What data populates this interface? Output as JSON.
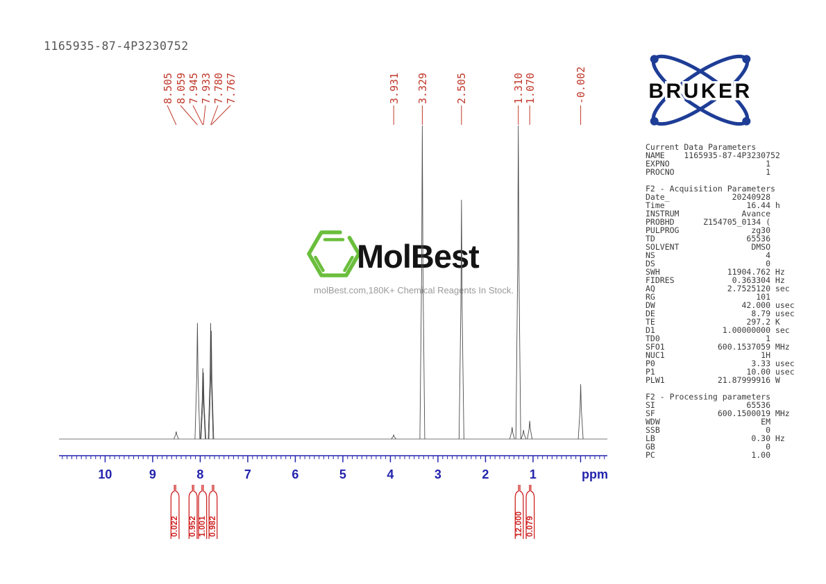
{
  "title": "1165935-87-4P3230752",
  "colors": {
    "peak_label_red": "#c0392b",
    "integral_red": "#cf2222",
    "axis_blue": "#2323ad",
    "trace_gray": "#4a4a4a",
    "bruker_blue": "#1e3d96",
    "molbest_green": "#6abe3c"
  },
  "bruker_logo": {
    "brand": "BRUKER"
  },
  "watermark": {
    "brand": "MolBest",
    "tagline": "molBest.com,180K+ Chemical Reagents In Stock."
  },
  "params": {
    "sections": [
      {
        "header": "Current Data Parameters",
        "rows": [
          [
            "NAME",
            "1165935-87-4P3230752",
            ""
          ],
          [
            "EXPNO",
            "1",
            ""
          ],
          [
            "PROCNO",
            "1",
            ""
          ]
        ]
      },
      {
        "header": "F2 - Acquisition Parameters",
        "rows": [
          [
            "Date_",
            "20240928",
            ""
          ],
          [
            "Time",
            "16.44",
            "h"
          ],
          [
            "INSTRUM",
            "Avance",
            ""
          ],
          [
            "PROBHD",
            "Z154705_0134 (",
            ""
          ],
          [
            "PULPROG",
            "zg30",
            ""
          ],
          [
            "TD",
            "65536",
            ""
          ],
          [
            "SOLVENT",
            "DMSO",
            ""
          ],
          [
            "NS",
            "4",
            ""
          ],
          [
            "DS",
            "0",
            ""
          ],
          [
            "SWH",
            "11904.762",
            "Hz"
          ],
          [
            "FIDRES",
            "0.363304",
            "Hz"
          ],
          [
            "AQ",
            "2.7525120",
            "sec"
          ],
          [
            "RG",
            "101",
            ""
          ],
          [
            "DW",
            "42.000",
            "usec"
          ],
          [
            "DE",
            "8.79",
            "usec"
          ],
          [
            "TE",
            "297.2",
            "K"
          ],
          [
            "D1",
            "1.00000000",
            "sec"
          ],
          [
            "TD0",
            "1",
            ""
          ],
          [
            "SFO1",
            "600.1537059",
            "MHz"
          ],
          [
            "NUC1",
            "1H",
            ""
          ],
          [
            "P0",
            "3.33",
            "usec"
          ],
          [
            "P1",
            "10.00",
            "usec"
          ],
          [
            "PLW1",
            "21.87999916",
            "W"
          ]
        ]
      },
      {
        "header": "F2 - Processing parameters",
        "rows": [
          [
            "SI",
            "65536",
            ""
          ],
          [
            "SF",
            "600.1500019",
            "MHz"
          ],
          [
            "WDW",
            "EM",
            ""
          ],
          [
            "SSB",
            "0",
            ""
          ],
          [
            "LB",
            "0.30",
            "Hz"
          ],
          [
            "GB",
            "0",
            ""
          ],
          [
            "PC",
            "1.00",
            ""
          ]
        ]
      }
    ]
  },
  "chart_data": {
    "type": "line",
    "title": "1H NMR spectrum",
    "xlabel": "ppm",
    "x_axis": {
      "min": -0.6,
      "max": 11.0,
      "direction": "reversed",
      "major_ticks": [
        10,
        9,
        8,
        7,
        6,
        5,
        4,
        3,
        2,
        1,
        0
      ],
      "numbered_ticks": [
        "10",
        "9",
        "8",
        "7",
        "6",
        "5",
        "4",
        "3",
        "2",
        "1"
      ],
      "minor_tick_step": 0.1,
      "unit_label": "ppm"
    },
    "peaks": [
      {
        "ppm": 8.505,
        "rel_intensity": 0.024,
        "label": "8.505"
      },
      {
        "ppm": 8.059,
        "rel_intensity": 0.37,
        "label": "8.059"
      },
      {
        "ppm": 7.945,
        "rel_intensity": 0.226,
        "label": "7.945"
      },
      {
        "ppm": 7.933,
        "rel_intensity": 0.212,
        "label": "7.933"
      },
      {
        "ppm": 7.78,
        "rel_intensity": 0.37,
        "label": "7.780"
      },
      {
        "ppm": 7.767,
        "rel_intensity": 0.345,
        "label": "7.767"
      },
      {
        "ppm": 3.931,
        "rel_intensity": 0.013,
        "label": "3.931"
      },
      {
        "ppm": 3.329,
        "rel_intensity": 1.0,
        "label": "3.329"
      },
      {
        "ppm": 2.505,
        "rel_intensity": 0.763,
        "label": "2.505"
      },
      {
        "ppm": 1.44,
        "rel_intensity": 0.038
      },
      {
        "ppm": 1.31,
        "rel_intensity": 1.0,
        "label": "1.310"
      },
      {
        "ppm": 1.2,
        "rel_intensity": 0.029
      },
      {
        "ppm": 1.07,
        "rel_intensity": 0.058,
        "label": "1.070"
      },
      {
        "ppm": -0.002,
        "rel_intensity": 0.175,
        "label": "-0.002"
      }
    ],
    "integrals": [
      {
        "ppm_center": 8.53,
        "value": "0.022"
      },
      {
        "ppm_center": 8.15,
        "value": "0.952"
      },
      {
        "ppm_center": 7.95,
        "value": "1.001"
      },
      {
        "ppm_center": 7.73,
        "value": "0.982"
      },
      {
        "ppm_center": 1.29,
        "value": "12.000"
      },
      {
        "ppm_center": 1.06,
        "value": "0.079"
      }
    ]
  }
}
